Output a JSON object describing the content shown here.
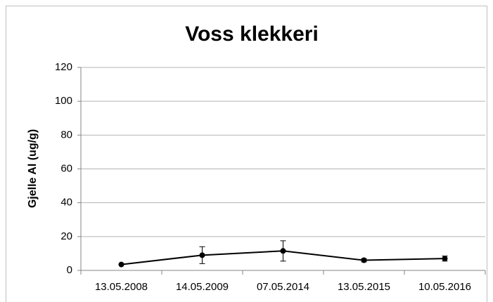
{
  "chart_data": {
    "type": "line",
    "title": "Voss klekkeri",
    "y_label": "Gjelle Al (ug/g)",
    "categories": [
      "13.05.2008",
      "14.05.2009",
      "07.05.2014",
      "13.05.2015",
      "10.05.2016"
    ],
    "values": [
      3.5,
      9,
      11.5,
      6,
      7
    ],
    "errors": [
      0,
      5,
      6,
      1,
      1.5
    ],
    "color": "#000000",
    "ylim": [
      0,
      120
    ],
    "yticks": [
      0,
      20,
      40,
      60,
      80,
      100,
      120
    ],
    "grid": true
  }
}
